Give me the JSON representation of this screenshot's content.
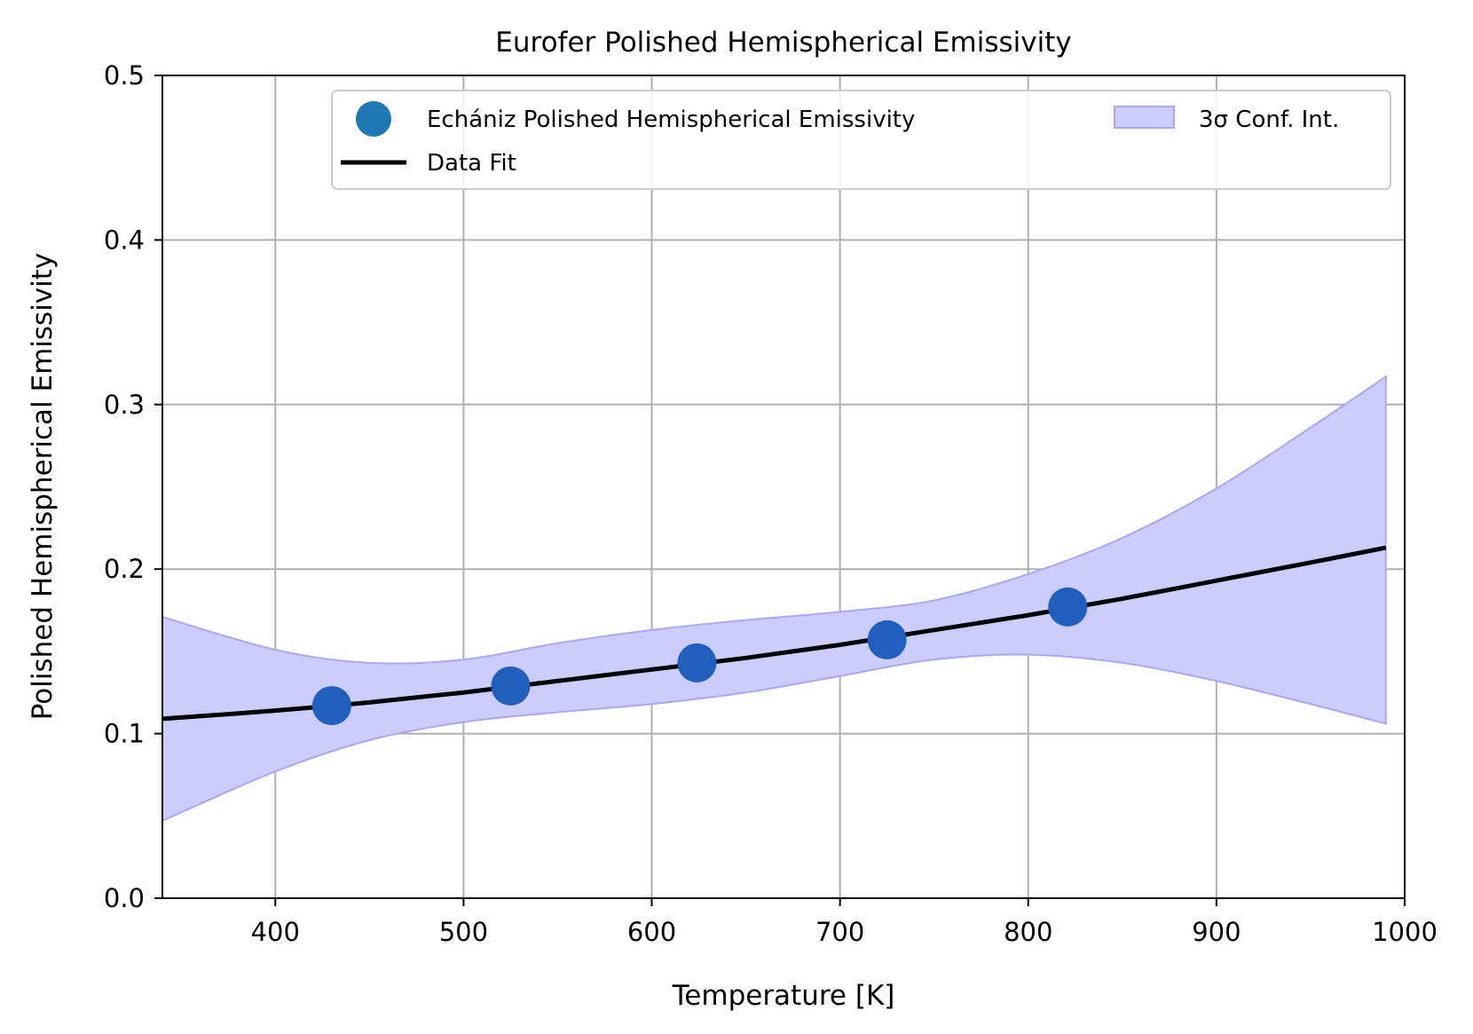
{
  "chart_data": {
    "type": "scatter",
    "title": "Eurofer Polished Hemispherical Emissivity",
    "xlabel": "Temperature [K]",
    "ylabel": "Polished Hemispherical Emissivity",
    "xlim": [
      340,
      1000
    ],
    "ylim": [
      0.0,
      0.5
    ],
    "xticks": [
      400,
      500,
      600,
      700,
      800,
      900,
      1000
    ],
    "xtick_labels": [
      "400",
      "500",
      "600",
      "700",
      "800",
      "900",
      "1000"
    ],
    "yticks": [
      0.0,
      0.1,
      0.2,
      0.3,
      0.4,
      0.5
    ],
    "ytick_labels": [
      "0.0",
      "0.1",
      "0.2",
      "0.3",
      "0.4",
      "0.5"
    ],
    "grid": true,
    "legend_position": "top-right",
    "series": [
      {
        "name": "Echániz Polished Hemispherical Emissivity",
        "kind": "scatter",
        "color": "#1f5fc0",
        "x": [
          430,
          525,
          624,
          725,
          821
        ],
        "y": [
          0.117,
          0.129,
          0.143,
          0.157,
          0.177
        ]
      },
      {
        "name": "Data Fit",
        "kind": "line",
        "color": "#000000",
        "x": [
          340,
          400,
          450,
          500,
          550,
          600,
          650,
          700,
          750,
          800,
          850,
          900,
          950,
          990
        ],
        "y": [
          0.109,
          0.114,
          0.119,
          0.125,
          0.132,
          0.139,
          0.146,
          0.154,
          0.163,
          0.172,
          0.182,
          0.193,
          0.204,
          0.213
        ]
      },
      {
        "name": "3σ Conf. Int.",
        "kind": "band",
        "color": "#8080ff",
        "x": [
          340,
          400,
          450,
          500,
          550,
          600,
          650,
          700,
          750,
          800,
          850,
          900,
          950,
          990
        ],
        "lower": [
          0.047,
          0.077,
          0.096,
          0.107,
          0.113,
          0.118,
          0.125,
          0.135,
          0.145,
          0.148,
          0.143,
          0.132,
          0.118,
          0.106
        ],
        "upper": [
          0.171,
          0.151,
          0.143,
          0.145,
          0.155,
          0.163,
          0.169,
          0.174,
          0.181,
          0.197,
          0.219,
          0.249,
          0.286,
          0.317
        ]
      }
    ]
  }
}
